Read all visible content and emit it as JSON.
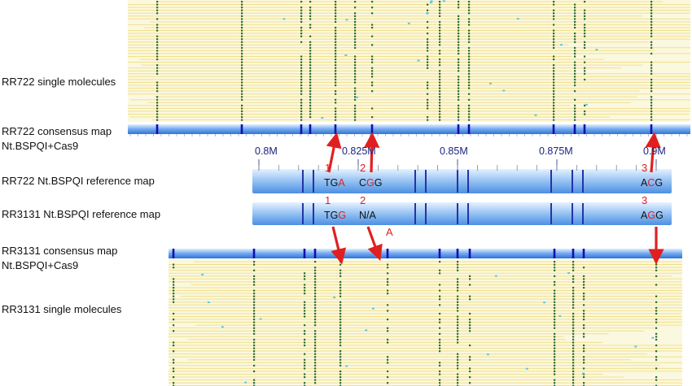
{
  "labels": {
    "rr722_molecules": "RR722 single molecules",
    "rr722_consensus_l1": "RR722 consensus map",
    "rr722_consensus_l2": "Nt.BSPQI+Cas9",
    "rr722_reference": "RR722   Nt.BSPQI reference map",
    "rr3131_reference": "RR3131 Nt.BSPQI reference map",
    "rr3131_consensus_l1": "RR3131 consensus map",
    "rr3131_consensus_l2": "Nt.BSPQI+Cas9",
    "rr3131_molecules": "RR3131 single molecules"
  },
  "scale": {
    "ticks": [
      "0.8M",
      "0.825M",
      "0.85M",
      "0.875M",
      "0.9M"
    ]
  },
  "sites": [
    {
      "number": "1",
      "rr722_pre": "TG",
      "rr722_mut": "A",
      "rr722_post": "",
      "rr3131_pre": "TG",
      "rr3131_mut": "G",
      "rr3131_post": ""
    },
    {
      "number": "2",
      "rr722_pre": "C",
      "rr722_mut": "G",
      "rr722_post": "G",
      "rr3131_text": "N/A",
      "rr3131_extra": "A"
    },
    {
      "number": "3",
      "rr722_pre": "A",
      "rr722_mut": "C",
      "rr722_post": "G",
      "rr3131_pre": "A",
      "rr3131_mut": "G",
      "rr3131_post": "G"
    }
  ],
  "colors": {
    "molecule_bg": "#fbf8e0",
    "molecule_line": "#f1e08a",
    "label_dot": "#2e6b2e",
    "map_blue": "#4a8fe0",
    "site_mark": "#1010b0",
    "arrow": "#e02020",
    "noise_dot": "#5cc6e8"
  }
}
